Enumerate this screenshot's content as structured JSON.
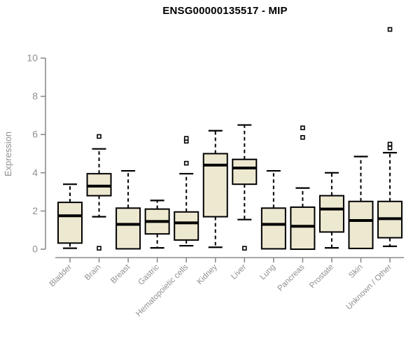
{
  "title": "ENSG00000135517 - MIP",
  "chart_data": {
    "type": "boxplot",
    "title": "ENSG00000135517 - MIP",
    "xlabel": "",
    "ylabel": "Expression",
    "ylim": [
      0,
      10
    ],
    "yticks": [
      0,
      2,
      4,
      6,
      8,
      10
    ],
    "grid": false,
    "legend": "none",
    "colors": {
      "box_fill": "#EDE8D0",
      "box_stroke": "#000000",
      "median": "#000000",
      "axis": "#8C8C8C",
      "tick_text": "#909090",
      "title_text": "#000000"
    },
    "categories": [
      "Bladder",
      "Brain",
      "Breast",
      "Gastric",
      "Hematopoietic cells",
      "Kidney",
      "Liver",
      "Lung",
      "Pancreas",
      "Prostate",
      "Skin",
      "Unknown / Other"
    ],
    "boxes": [
      {
        "category": "Bladder",
        "whisker_low": 0.05,
        "q1": 0.32,
        "median": 1.75,
        "q3": 2.45,
        "whisker_high": 3.4,
        "outliers": []
      },
      {
        "category": "Brain",
        "whisker_low": 1.7,
        "q1": 2.8,
        "median": 3.3,
        "q3": 3.95,
        "whisker_high": 5.25,
        "outliers": [
          5.9,
          0.05
        ]
      },
      {
        "category": "Breast",
        "whisker_low": 0.02,
        "q1": 0.02,
        "median": 1.3,
        "q3": 2.15,
        "whisker_high": 4.1,
        "outliers": []
      },
      {
        "category": "Gastric",
        "whisker_low": 0.07,
        "q1": 0.8,
        "median": 1.45,
        "q3": 2.1,
        "whisker_high": 2.55,
        "outliers": []
      },
      {
        "category": "Hematopoietic cells",
        "whisker_low": 0.18,
        "q1": 0.48,
        "median": 1.38,
        "q3": 1.95,
        "whisker_high": 3.95,
        "outliers": [
          4.5,
          5.65,
          5.8
        ]
      },
      {
        "category": "Kidney",
        "whisker_low": 0.1,
        "q1": 1.7,
        "median": 4.4,
        "q3": 5.0,
        "whisker_high": 6.2,
        "outliers": []
      },
      {
        "category": "Liver",
        "whisker_low": 1.55,
        "q1": 3.4,
        "median": 4.25,
        "q3": 4.7,
        "whisker_high": 6.5,
        "outliers": [
          0.05
        ]
      },
      {
        "category": "Lung",
        "whisker_low": 0.02,
        "q1": 0.02,
        "median": 1.3,
        "q3": 2.15,
        "whisker_high": 4.1,
        "outliers": []
      },
      {
        "category": "Pancreas",
        "whisker_low": 0.0,
        "q1": 0.0,
        "median": 1.2,
        "q3": 2.2,
        "whisker_high": 3.2,
        "outliers": [
          5.85,
          6.35
        ]
      },
      {
        "category": "Prostate",
        "whisker_low": 0.07,
        "q1": 0.9,
        "median": 2.1,
        "q3": 2.8,
        "whisker_high": 4.0,
        "outliers": []
      },
      {
        "category": "Skin",
        "whisker_low": 0.04,
        "q1": 0.04,
        "median": 1.5,
        "q3": 2.5,
        "whisker_high": 4.85,
        "outliers": []
      },
      {
        "category": "Unknown / Other",
        "whisker_low": 0.15,
        "q1": 0.6,
        "median": 1.6,
        "q3": 2.5,
        "whisker_high": 5.05,
        "outliers": [
          5.3,
          5.5,
          11.5
        ]
      }
    ]
  }
}
